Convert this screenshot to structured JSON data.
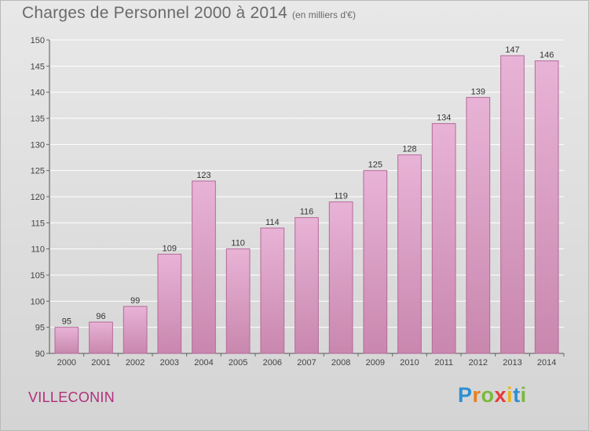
{
  "header": {
    "title": "Charges de Personnel 2000 à 2014",
    "subtitle": "(en milliers d'€)"
  },
  "footer": {
    "commune": "VILLECONIN",
    "logo_letters": [
      {
        "ch": "P",
        "color": "#2e8fd0"
      },
      {
        "ch": "r",
        "color": "#e8801c"
      },
      {
        "ch": "o",
        "color": "#7bb93a"
      },
      {
        "ch": "x",
        "color": "#e83a3a"
      },
      {
        "ch": "i",
        "color": "#e8b51c"
      },
      {
        "ch": "t",
        "color": "#2e8fd0"
      },
      {
        "ch": "i",
        "color": "#7bb93a"
      }
    ]
  },
  "colors": {
    "bar_light": "#e8b3d6",
    "bar_dark": "#c987ae",
    "bar_edge": "#b56a98",
    "grid": "#ffffff",
    "commune": "#b0307a"
  },
  "chart_data": {
    "type": "bar",
    "categories": [
      "2000",
      "2001",
      "2002",
      "2003",
      "2004",
      "2005",
      "2006",
      "2007",
      "2008",
      "2009",
      "2010",
      "2011",
      "2012",
      "2013",
      "2014"
    ],
    "values": [
      95,
      96,
      99,
      109,
      123,
      110,
      114,
      116,
      119,
      125,
      128,
      134,
      139,
      147,
      146
    ],
    "ylim": [
      90,
      150
    ],
    "yticks": [
      90,
      95,
      100,
      105,
      110,
      115,
      120,
      125,
      130,
      135,
      140,
      145,
      150
    ],
    "grid": true,
    "xlabel": "",
    "ylabel": ""
  }
}
